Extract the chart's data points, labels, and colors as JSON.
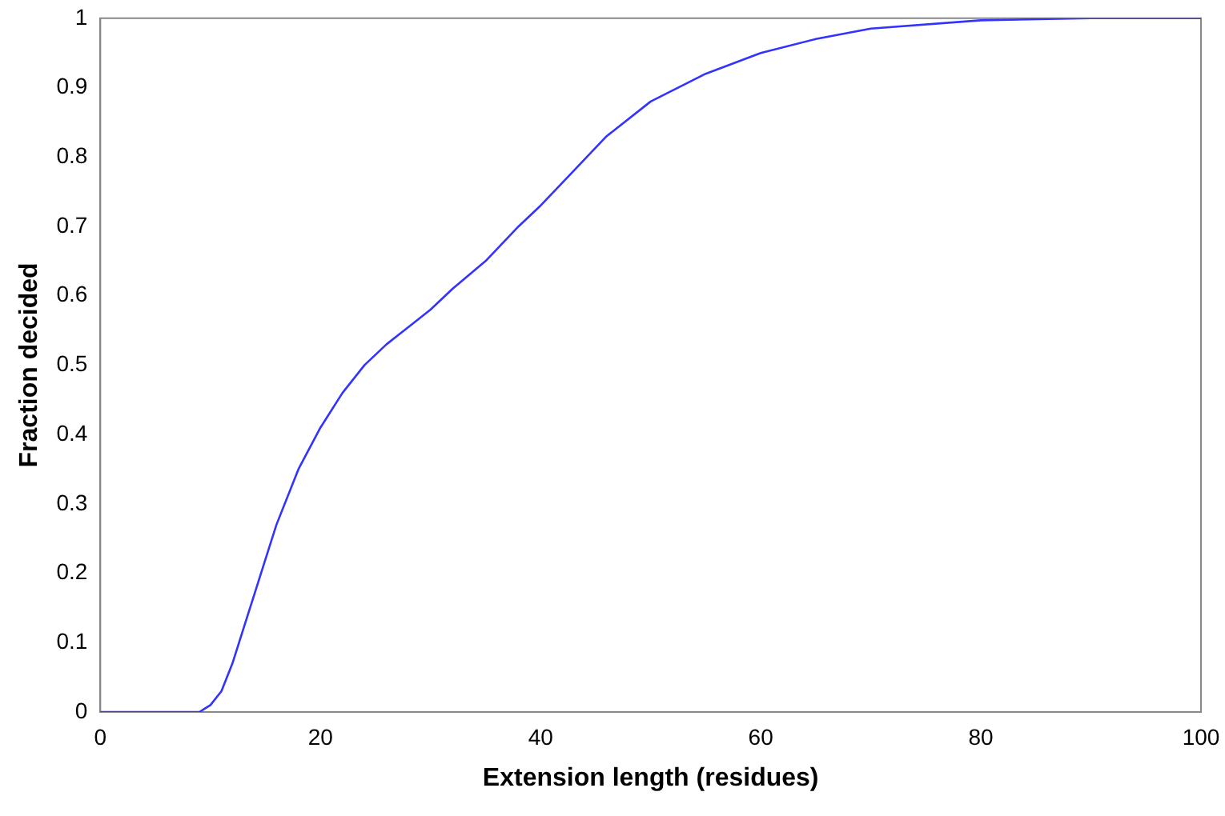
{
  "chart_data": {
    "type": "line",
    "xlabel": "Extension length (residues)",
    "ylabel": "Fraction decided",
    "x": [
      0,
      5,
      9,
      10,
      11,
      12,
      13,
      14,
      15,
      16,
      18,
      20,
      22,
      24,
      26,
      28,
      30,
      32,
      35,
      38,
      40,
      43,
      46,
      50,
      55,
      60,
      65,
      70,
      80,
      90,
      100
    ],
    "series": [
      {
        "color": "#3333ff",
        "values": [
          0,
          0,
          0,
          0.01,
          0.03,
          0.07,
          0.12,
          0.17,
          0.22,
          0.27,
          0.35,
          0.41,
          0.46,
          0.5,
          0.53,
          0.555,
          0.58,
          0.61,
          0.65,
          0.7,
          0.73,
          0.78,
          0.83,
          0.88,
          0.92,
          0.95,
          0.97,
          0.985,
          0.997,
          1,
          1
        ]
      }
    ],
    "xlim": [
      0,
      100
    ],
    "xticks": [
      0,
      20,
      40,
      60,
      80,
      100
    ],
    "ylim": [
      0,
      1
    ],
    "yticks": [
      0,
      0.1,
      0.2,
      0.3,
      0.4,
      0.5,
      0.6,
      0.7,
      0.8,
      0.9,
      1
    ],
    "grid": false,
    "legend": false,
    "marker": "none",
    "line_style": "solid"
  }
}
